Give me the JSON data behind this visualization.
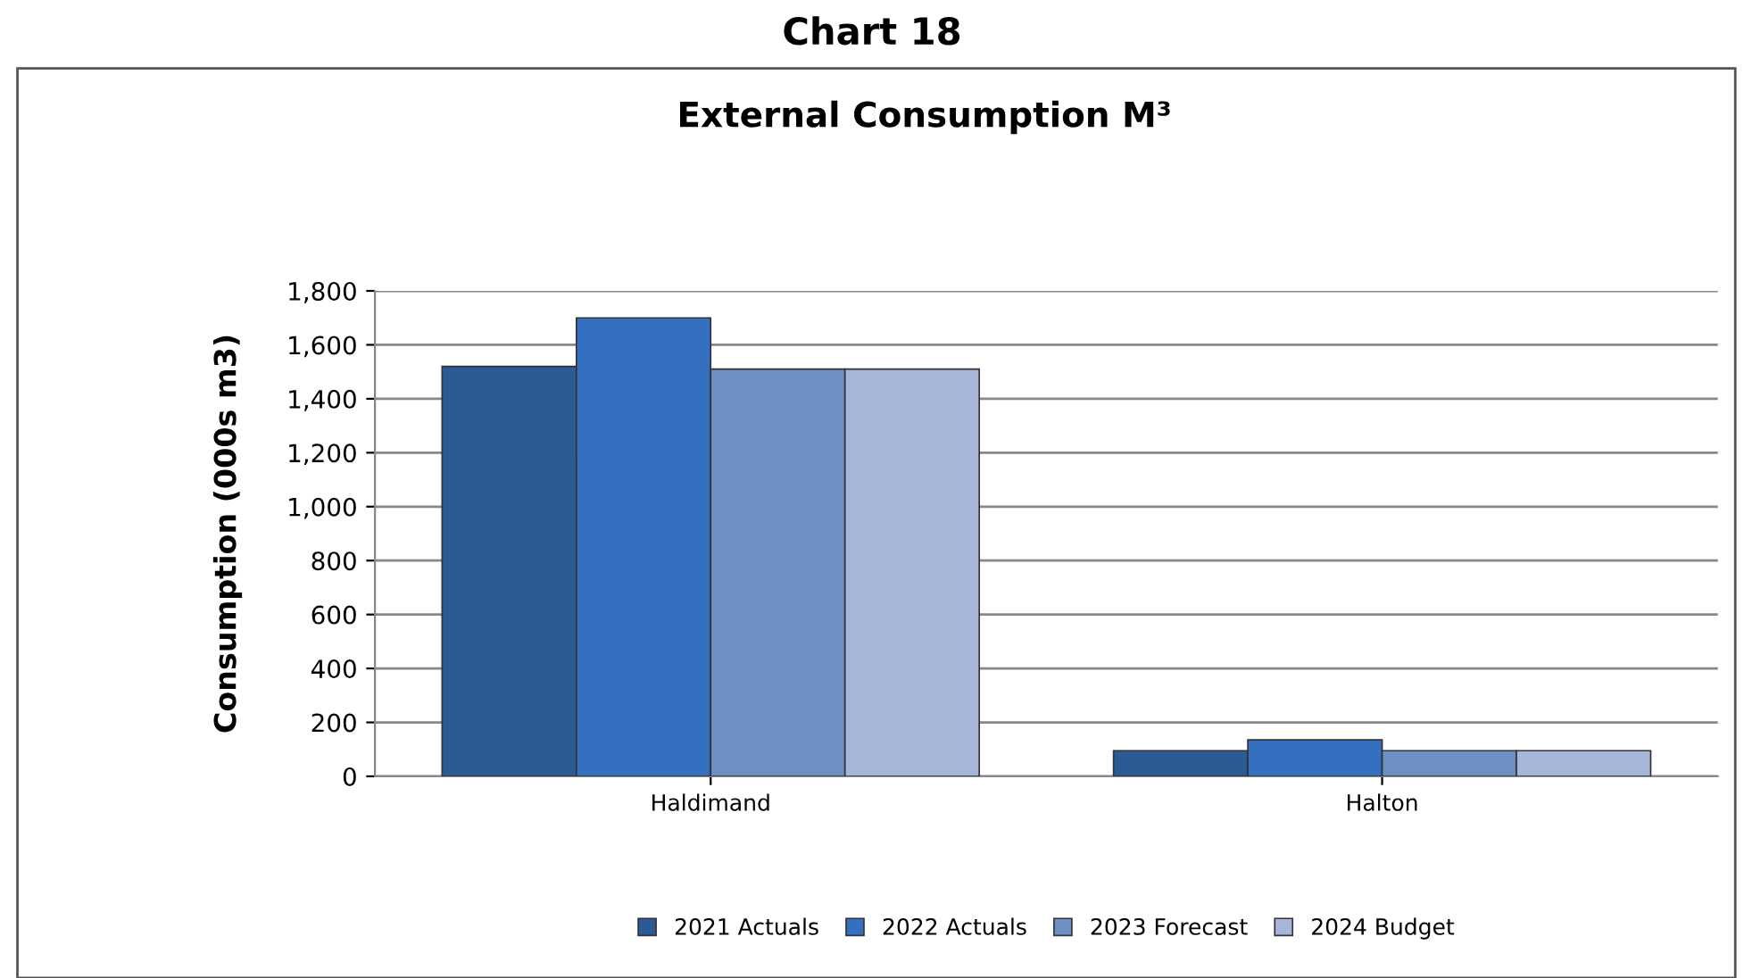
{
  "chart_data": {
    "type": "bar",
    "title": "Chart 18",
    "subtitle": "External Consumption M³",
    "ylabel": "Consumption (000s m3)",
    "categories": [
      "Haldimand",
      "Halton"
    ],
    "series": [
      {
        "name": "2021 Actuals",
        "color": "#2c5a94",
        "values": [
          1520,
          95
        ]
      },
      {
        "name": "2022 Actuals",
        "color": "#3470bf",
        "values": [
          1700,
          135
        ]
      },
      {
        "name": "2023 Forecast",
        "color": "#6d8fc4",
        "values": [
          1510,
          95
        ]
      },
      {
        "name": "2024 Budget",
        "color": "#a7b6d8",
        "values": [
          1510,
          95
        ]
      }
    ],
    "ylim": [
      0,
      1800
    ],
    "yticks": [
      0,
      {
        "value": 200,
        "label": "200"
      },
      {
        "value": 400,
        "label": "400"
      },
      {
        "value": 600,
        "label": "600"
      },
      {
        "value": 800,
        "label": "800"
      },
      {
        "value": 1000,
        "label": "1,000"
      },
      {
        "value": 1200,
        "label": "1,200"
      },
      {
        "value": 1400,
        "label": "1,400"
      },
      {
        "value": 1600,
        "label": "1,600"
      },
      {
        "value": 1800,
        "label": "1,800"
      }
    ],
    "grid": "y",
    "legend": "bottom"
  }
}
